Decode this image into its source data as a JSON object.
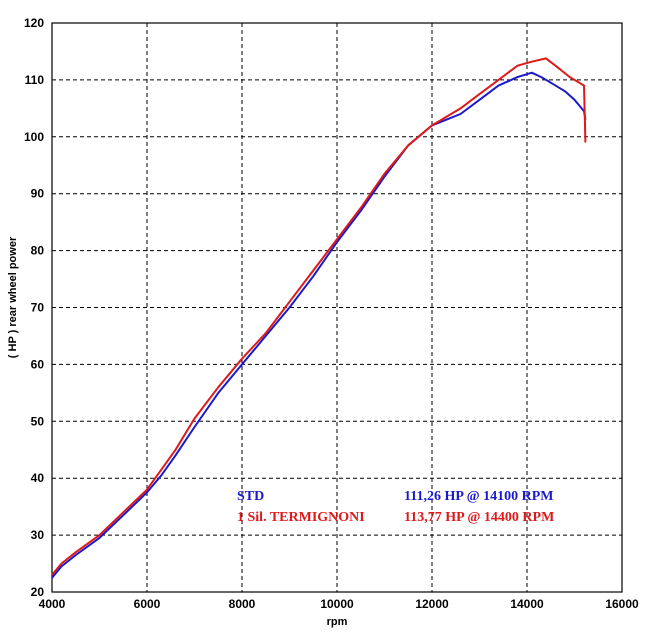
{
  "chart_data": {
    "type": "line",
    "xlabel": "rpm",
    "ylabel": "( HP )  rear  wheel  power",
    "xlim": [
      4000,
      16000
    ],
    "ylim": [
      20,
      120
    ],
    "x_ticks": [
      4000,
      6000,
      8000,
      10000,
      12000,
      14000,
      16000
    ],
    "y_ticks": [
      20,
      30,
      40,
      50,
      60,
      70,
      80,
      90,
      100,
      110,
      120
    ],
    "grid": true,
    "series": [
      {
        "name": "STD",
        "color": "#1a1acc",
        "peak_text": "111,26 HP @ 14100 RPM",
        "x": [
          4000,
          4200,
          4500,
          5000,
          5500,
          6000,
          6300,
          6600,
          7000,
          7500,
          8000,
          8500,
          9000,
          9500,
          10000,
          10500,
          11000,
          11500,
          12000,
          12300,
          12600,
          13000,
          13400,
          13800,
          14100,
          14300,
          14500,
          14800,
          15000,
          15100,
          15200,
          15230
        ],
        "y": [
          22.5,
          24.5,
          26.5,
          29.5,
          33.5,
          37.5,
          40.5,
          44,
          49,
          55,
          60,
          65,
          70,
          75.5,
          81.5,
          87,
          93,
          98.5,
          102,
          103,
          104,
          106.5,
          109,
          110.5,
          111.26,
          110.5,
          109.5,
          108,
          106.5,
          105.5,
          104.5,
          103
        ]
      },
      {
        "name": "1 Sil. TERMIGNONI",
        "color": "#dd1a1a",
        "peak_text": "113,77 HP @ 14400 RPM",
        "x": [
          4000,
          4200,
          4500,
          5000,
          5500,
          6000,
          6300,
          6600,
          7000,
          7500,
          8000,
          8500,
          9000,
          9500,
          10000,
          10500,
          11000,
          11500,
          12000,
          12300,
          12600,
          13000,
          13400,
          13800,
          14100,
          14400,
          14600,
          14900,
          15100,
          15200,
          15220,
          15230
        ],
        "y": [
          23,
          25,
          27,
          30,
          34,
          38,
          41.5,
          45,
          50.5,
          56,
          61,
          65.5,
          71,
          76.5,
          82,
          87.5,
          93.5,
          98.5,
          102,
          103.5,
          105,
          107.5,
          110,
          112.5,
          113.2,
          113.77,
          112.5,
          110.5,
          109.5,
          109,
          102,
          99
        ]
      }
    ]
  }
}
